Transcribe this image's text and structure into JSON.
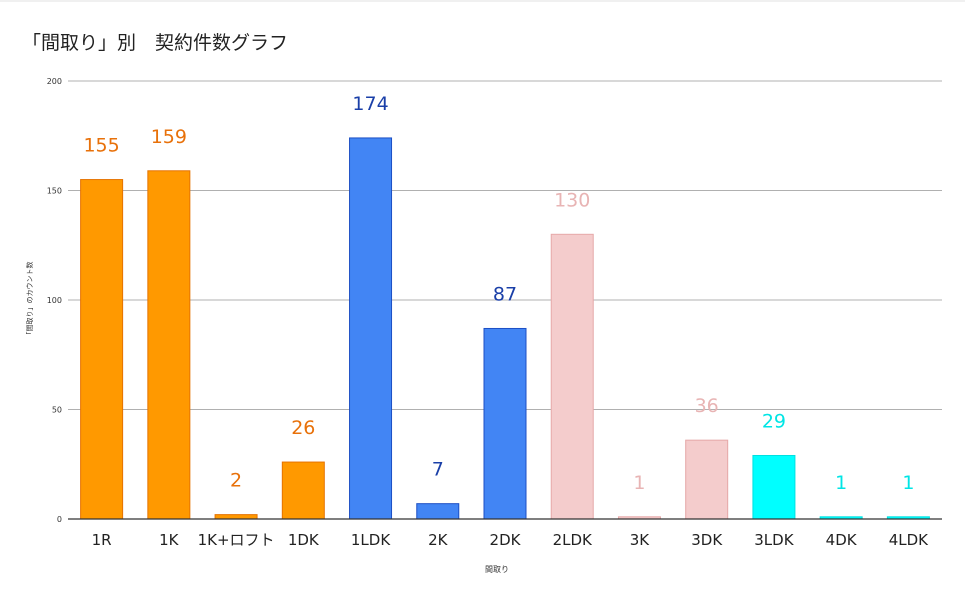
{
  "chart_data": {
    "type": "bar",
    "title": "「間取り」別　契約件数グラフ",
    "xlabel": "間取り",
    "ylabel": "「間取り」のカウント数",
    "ylim": [
      0,
      200
    ],
    "yticks": [
      0,
      50,
      100,
      150,
      200
    ],
    "grid": true,
    "legend": "none",
    "categories": [
      "1R",
      "1K",
      "1K+ロフト",
      "1DK",
      "1LDK",
      "2K",
      "2DK",
      "2LDK",
      "3K",
      "3DK",
      "3LDK",
      "4DK",
      "4LDK"
    ],
    "values": [
      155,
      159,
      2,
      26,
      174,
      7,
      87,
      130,
      1,
      36,
      29,
      1,
      1
    ],
    "bar_colors": [
      "#ff9900",
      "#ff9900",
      "#ff9900",
      "#ff9900",
      "#4285f4",
      "#4285f4",
      "#4285f4",
      "#f4cccc",
      "#f4cccc",
      "#f4cccc",
      "#00ffff",
      "#00ffff",
      "#00ffff"
    ],
    "bar_stroke_colors": [
      "#e67300",
      "#e67300",
      "#e67300",
      "#e67300",
      "#1c4fc4",
      "#1c4fc4",
      "#1c4fc4",
      "#e6a8a8",
      "#e6a8a8",
      "#e6a8a8",
      "#00e0e0",
      "#00e0e0",
      "#00e0e0"
    ],
    "label_colors": [
      "#e8710a",
      "#e8710a",
      "#e8710a",
      "#e8710a",
      "#1a3fa8",
      "#1a3fa8",
      "#1a3fa8",
      "#e8b4b4",
      "#e8b4b4",
      "#e8b4b4",
      "#00e5e5",
      "#00e5e5",
      "#00e5e5"
    ]
  }
}
